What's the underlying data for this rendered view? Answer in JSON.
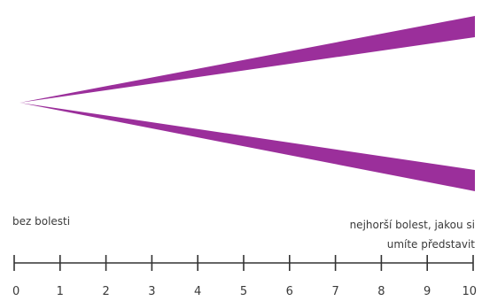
{
  "scale": {
    "min": 0,
    "max": 10,
    "ticks": [
      "0",
      "1",
      "2",
      "3",
      "4",
      "5",
      "6",
      "7",
      "8",
      "9",
      "10"
    ],
    "left_label": "bez bolesti",
    "right_label_line1": "nejhorší bolest, jakou si",
    "right_label_line2": "umíte představit"
  },
  "colors": {
    "wedge": "#9b2f9b",
    "line": "#333333",
    "text": "#3a3a3a",
    "background": "#ffffff"
  }
}
